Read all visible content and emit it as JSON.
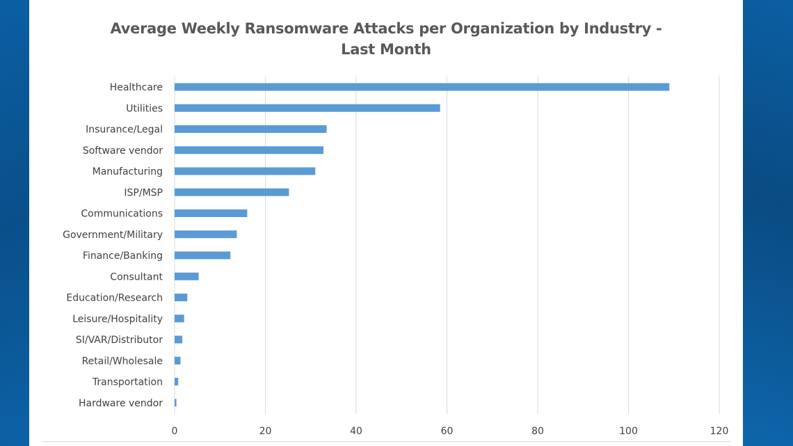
{
  "chart_data": {
    "type": "bar",
    "orientation": "horizontal",
    "title_line1": "Average Weekly Ransomware Attacks per Organization by Industry -",
    "title_line2": "Last Month",
    "xlabel": "",
    "ylabel": "",
    "xlim": [
      0,
      120
    ],
    "ticks": [
      "0",
      "20",
      "40",
      "60",
      "80",
      "100",
      "120"
    ],
    "tick_values": [
      0,
      20,
      40,
      60,
      80,
      100,
      120
    ],
    "grid": true,
    "legend": "none",
    "bar_color": "#5b9bd5",
    "categories": [
      "Healthcare",
      "Utilities",
      "Insurance/Legal",
      "Software vendor",
      "Manufacturing",
      "ISP/MSP",
      "Communications",
      "Government/Military",
      "Finance/Banking",
      "Consultant",
      "Education/Research",
      "Leisure/Hospitality",
      "SI/VAR/Distributor",
      "Retail/Wholesale",
      "Transportation",
      "Hardware vendor"
    ],
    "values": [
      109,
      58.5,
      33.5,
      32.8,
      31,
      25.2,
      16,
      13.7,
      12.3,
      5.3,
      2.8,
      2.1,
      1.7,
      1.3,
      0.8,
      0.4
    ]
  }
}
